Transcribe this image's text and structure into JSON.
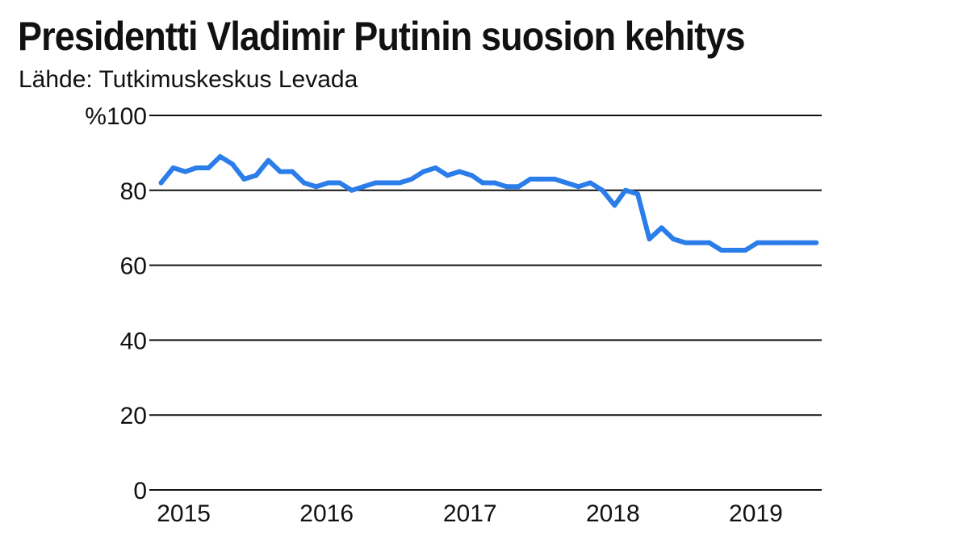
{
  "chart_data": {
    "type": "line",
    "title": "Presidentti Vladimir Putinin suosion kehitys",
    "subtitle": "Lähde: Tutkimuskeskus Levada",
    "ylim": [
      0,
      100
    ],
    "y_ticks": [
      0,
      20,
      40,
      60,
      80,
      100
    ],
    "y_tick_labels": [
      "0",
      "20",
      "40",
      "60",
      "80",
      "%100"
    ],
    "x_range": [
      "2014-11-01",
      "2019-07-15"
    ],
    "x_ticks": [
      {
        "label": "2015",
        "date": "2015-01-01"
      },
      {
        "label": "2016",
        "date": "2016-01-01"
      },
      {
        "label": "2017",
        "date": "2017-01-01"
      },
      {
        "label": "2018",
        "date": "2018-01-01"
      },
      {
        "label": "2019",
        "date": "2019-01-01"
      }
    ],
    "grid": true,
    "color": "#2b7de9",
    "series": [
      {
        "x": [
          "2014-12-01",
          "2015-01-01",
          "2015-02-01",
          "2015-03-01",
          "2015-04-01",
          "2015-05-01",
          "2015-06-01",
          "2015-07-01",
          "2015-08-01",
          "2015-09-01",
          "2015-10-01",
          "2015-11-01",
          "2015-12-01",
          "2016-01-01",
          "2016-02-01",
          "2016-03-01",
          "2016-04-01",
          "2016-05-01",
          "2016-06-01",
          "2016-07-01",
          "2016-08-01",
          "2016-09-01",
          "2016-10-01",
          "2016-11-01",
          "2016-12-01",
          "2017-01-01",
          "2017-02-01",
          "2017-03-01",
          "2017-04-01",
          "2017-05-01",
          "2017-06-01",
          "2017-07-01",
          "2017-08-01",
          "2017-09-01",
          "2017-10-01",
          "2017-11-01",
          "2017-12-01",
          "2018-01-01",
          "2018-02-01",
          "2018-03-01",
          "2018-04-01",
          "2018-05-01",
          "2018-06-01",
          "2018-07-01",
          "2018-08-01",
          "2018-09-01",
          "2018-10-01",
          "2018-11-01",
          "2018-12-01",
          "2019-01-01",
          "2019-02-01",
          "2019-03-01",
          "2019-04-01",
          "2019-05-01",
          "2019-06-01",
          "2019-07-01"
        ],
        "values": [
          82,
          86,
          85,
          86,
          86,
          89,
          87,
          83,
          84,
          88,
          85,
          85,
          82,
          81,
          82,
          82,
          80,
          81,
          82,
          82,
          82,
          83,
          85,
          86,
          84,
          85,
          84,
          82,
          82,
          81,
          81,
          83,
          83,
          83,
          82,
          81,
          82,
          80,
          76,
          80,
          79,
          67,
          70,
          67,
          66,
          66,
          66,
          64,
          64,
          64,
          66,
          66,
          66,
          66,
          66,
          66
        ]
      }
    ]
  }
}
